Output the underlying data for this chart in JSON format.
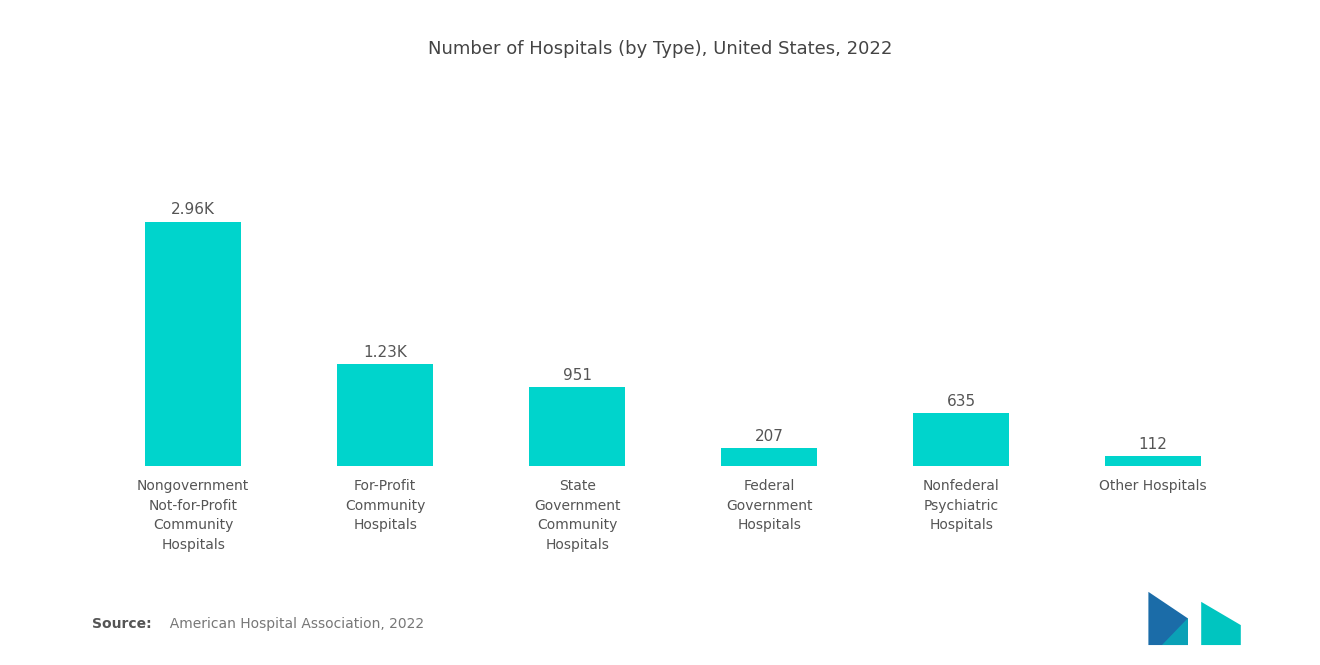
{
  "title": "Number of Hospitals (by Type), United States, 2022",
  "categories": [
    "Nongovernment\nNot-for-Profit\nCommunity\nHospitals",
    "For-Profit\nCommunity\nHospitals",
    "State\nGovernment\nCommunity\nHospitals",
    "Federal\nGovernment\nHospitals",
    "Nonfederal\nPsychiatric\nHospitals",
    "Other Hospitals"
  ],
  "values": [
    2960,
    1230,
    951,
    207,
    635,
    112
  ],
  "labels": [
    "2.96K",
    "1.23K",
    "951",
    "207",
    "635",
    "112"
  ],
  "bar_color": "#00D4CC",
  "background_color": "#FFFFFF",
  "source_bold": "Source:",
  "source_normal": "  American Hospital Association, 2022",
  "title_fontsize": 13,
  "label_fontsize": 11,
  "tick_fontsize": 10,
  "source_fontsize": 10,
  "ylim": [
    0,
    4200
  ],
  "logo_color1": "#1B6CA8",
  "logo_color2": "#00C5C0"
}
